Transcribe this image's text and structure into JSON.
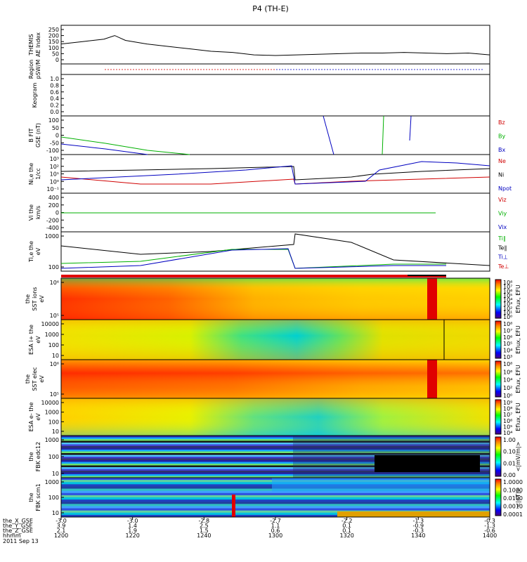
{
  "title": "P4 (TH-E)",
  "panels": [
    {
      "id": "ae",
      "ylabel": [
        "THEMIS",
        "AE Index"
      ],
      "yticks": [
        "250",
        "200",
        "150",
        "100",
        "50",
        "0"
      ],
      "right": []
    },
    {
      "id": "region",
      "ylabel": [
        "Region",
        "pSW/M"
      ],
      "yticks": [],
      "right": []
    },
    {
      "id": "keogram",
      "ylabel": [
        "Keogram"
      ],
      "yticks": [
        "1.0",
        "0.8",
        "0.6",
        "0.4",
        "0.2",
        "0.0"
      ],
      "right": []
    },
    {
      "id": "bfield",
      "ylabel": [
        "B FIT",
        "GSE (nT)"
      ],
      "yticks": [
        "100",
        "50",
        "0",
        "-50",
        "-100"
      ],
      "right": [
        {
          "t": "Bz",
          "c": "#d00000"
        },
        {
          "t": "By",
          "c": "#00b000"
        },
        {
          "t": "Bx",
          "c": "#0000c0"
        }
      ]
    },
    {
      "id": "density",
      "ylabel": [
        "Ni,e the",
        "1/cc"
      ],
      "yticks": [
        "10³",
        "10²",
        "10¹",
        "10⁰",
        "10⁻¹"
      ],
      "right": [
        {
          "t": "Ne",
          "c": "#d00000"
        },
        {
          "t": "Ni",
          "c": "#000000"
        },
        {
          "t": "Npot",
          "c": "#0000c0"
        }
      ]
    },
    {
      "id": "velocity",
      "ylabel": [
        "Vi the",
        "km/s"
      ],
      "yticks": [
        "400",
        "200",
        "0",
        "-200",
        "-400"
      ],
      "right": [
        {
          "t": "Viz",
          "c": "#d00000"
        },
        {
          "t": "Viy",
          "c": "#00b000"
        },
        {
          "t": "Vix",
          "c": "#0000c0"
        }
      ]
    },
    {
      "id": "temp",
      "ylabel": [
        "Ti,e the",
        "eV"
      ],
      "yticks": [
        "1000",
        "100"
      ],
      "right": [
        {
          "t": "Ti∥",
          "c": "#00b000"
        },
        {
          "t": "Te∥",
          "c": "#000000"
        },
        {
          "t": "Ti⊥",
          "c": "#0000c0"
        },
        {
          "t": "Te⊥",
          "c": "#d00000"
        }
      ]
    },
    {
      "id": "sst_ions",
      "ylabel": [
        "the",
        "SST ions",
        "eV"
      ],
      "yticks": [
        "10⁶",
        "10⁵"
      ],
      "cbar": [
        "10⁸",
        "10⁷",
        "10⁶",
        "10⁵",
        "10⁴",
        "10³",
        "10²",
        "10¹",
        "10⁰"
      ],
      "cunit": "Eflux, EFU"
    },
    {
      "id": "esa_ions",
      "ylabel": [
        "ESA i+ the",
        "eV"
      ],
      "yticks": [
        "10000",
        "1000",
        "100",
        "10"
      ],
      "cbar": [
        "10⁸",
        "10⁷",
        "10⁶",
        "10⁵",
        "10⁴",
        "10³"
      ],
      "cunit": "Eflux, EFU"
    },
    {
      "id": "sst_elec",
      "ylabel": [
        "the",
        "SST elec",
        "eV"
      ],
      "yticks": [
        "10⁶",
        "10⁵"
      ],
      "cbar": [
        "10⁸",
        "10⁶",
        "10⁴",
        "10²",
        "10⁰"
      ],
      "cunit": "Eflux, EFU"
    },
    {
      "id": "esa_elec",
      "ylabel": [
        "ESA e- the",
        "eV"
      ],
      "yticks": [
        "10000",
        "1000",
        "100",
        "10"
      ],
      "cbar": [
        "10⁹",
        "10⁸",
        "10⁷",
        "10⁶",
        "10⁵",
        "10⁴"
      ],
      "cunit": "Eflux, EFU"
    },
    {
      "id": "fbk_edc",
      "ylabel": [
        "the",
        "FBK edc12"
      ],
      "yticks": [
        "1000",
        "100",
        "10"
      ],
      "cbar": [
        "1.00",
        "0.10",
        "0.01",
        "0.00"
      ],
      "cunit": "<|mV/m|>"
    },
    {
      "id": "fbk_scm",
      "ylabel": [
        "the",
        "FBK scm1"
      ],
      "yticks": [
        "1000",
        "100",
        "10"
      ],
      "cbar": [
        "1.0000",
        "0.1000",
        "0.0100",
        "0.0010",
        "0.0001"
      ],
      "cunit": "<|nT|>"
    }
  ],
  "xaxis": {
    "row_labels": [
      "the_X_GSE",
      "the_Y_GSE",
      "the_Z_GSE",
      "hhmm",
      "2011 Sep 13"
    ],
    "columns": [
      {
        "x": "-3.0",
        "y": "3.9",
        "z": "2.1",
        "t": "1200"
      },
      {
        "x": "-3.0",
        "y": "1.4",
        "z": "1.9",
        "t": "1220"
      },
      {
        "x": "-2.8",
        "y": "2.5",
        "z": "1.5",
        "t": "1240"
      },
      {
        "x": "-2.7",
        "y": "1.1",
        "z": "0.6",
        "t": "1300"
      },
      {
        "x": "-2.2",
        "y": "0.1",
        "z": "0.1",
        "t": "1320"
      },
      {
        "x": "-1.3",
        "y": "-0.9",
        "z": "-0.3",
        "t": "1340"
      },
      {
        "x": "-0.3",
        "y": "-1.3",
        "z": "-0.6",
        "t": "1400"
      }
    ]
  },
  "chart_data": {
    "type": "line",
    "title": "P4 (TH-E)",
    "x_range": [
      "1200",
      "1400"
    ],
    "series": [
      {
        "name": "AE",
        "x": [
          1200,
          1210,
          1220,
          1225,
          1230,
          1240,
          1250,
          1260,
          1270,
          1280,
          1290,
          1300,
          1310,
          1320,
          1330,
          1340,
          1350,
          1360,
          1370,
          1380,
          1390,
          1400
        ],
        "values": [
          130,
          150,
          170,
          200,
          160,
          130,
          110,
          90,
          70,
          60,
          40,
          35,
          40,
          45,
          50,
          55,
          55,
          60,
          55,
          50,
          55,
          40
        ]
      }
    ]
  }
}
